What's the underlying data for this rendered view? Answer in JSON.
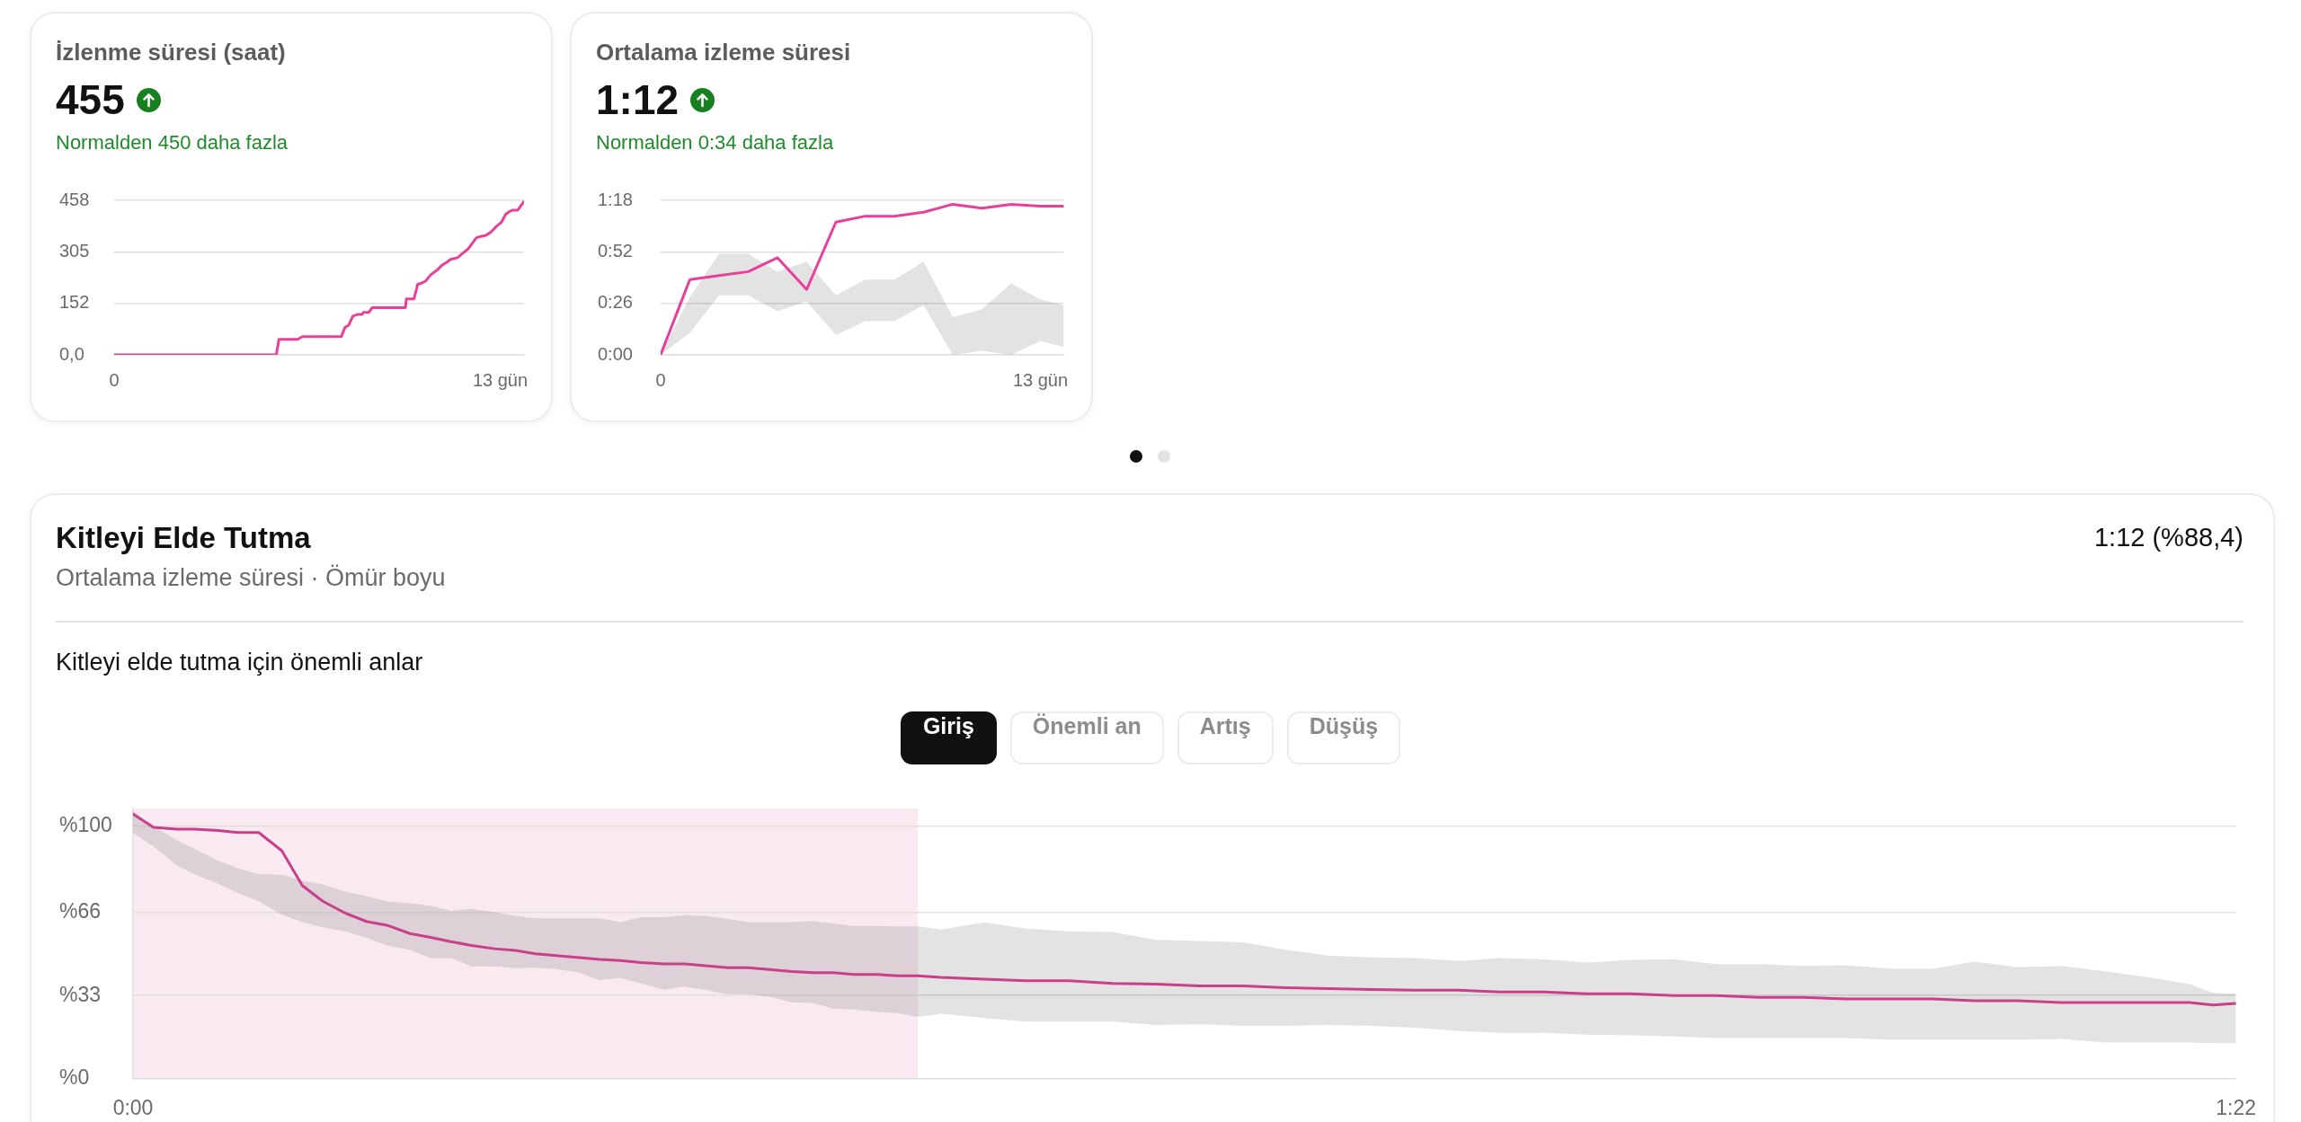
{
  "chart_data": [
    {
      "type": "line",
      "title": "İzlenme süresi (saat)",
      "annotations": [
        "455",
        "Normalden 450 daha fazla"
      ],
      "x": [
        0,
        5.46,
        5.55,
        6.18,
        6.34,
        7.65,
        7.77,
        7.9,
        8.04,
        8.21,
        8.34,
        8.4,
        8.58,
        8.69,
        9.81,
        9.84,
        10.1,
        10.22,
        10.37,
        10.49,
        10.67,
        10.9,
        11.02,
        11.21,
        11.33,
        11.56,
        11.74,
        11.92,
        12.2,
        12.34,
        12.52,
        12.7,
        12.88,
        13.05,
        13.18,
        13.3,
        13.42,
        13.59,
        13.68,
        13.8
      ],
      "series": [
        {
          "color": "#e8409a",
          "values": [
            0,
            0,
            46,
            46,
            54,
            54,
            81,
            88,
            115,
            120,
            120,
            126,
            126,
            140,
            140,
            166,
            166,
            209,
            213,
            219,
            238,
            253,
            264,
            275,
            283,
            288,
            301,
            314,
            347,
            351,
            354,
            365,
            381,
            394,
            416,
            424,
            429,
            429,
            440,
            454
          ]
        }
      ],
      "xlim": [
        0,
        13.8
      ],
      "xticks": [
        0,
        {
          "value": 13,
          "label": "13 gün"
        }
      ],
      "ylim": [
        0,
        458
      ],
      "yticks": [
        {
          "value": 0,
          "label": "0,0"
        },
        152,
        305,
        458
      ],
      "grid": "y"
    },
    {
      "type": "line",
      "title": "Ortalama izleme süresi",
      "annotations": [
        "1:12",
        "Normalden 0:34 daha fazla"
      ],
      "x": [
        0,
        1,
        2,
        3,
        4,
        5,
        6,
        7,
        8,
        9,
        10,
        11,
        12,
        13,
        13.8
      ],
      "series": [
        {
          "color": "#e8409a",
          "values": [
            0,
            38,
            40,
            42,
            49,
            33,
            67,
            70,
            70,
            72,
            76,
            74,
            76,
            75,
            75
          ],
          "lower": [
            0,
            11,
            30,
            30,
            22,
            27,
            10,
            17,
            17,
            25,
            0,
            2,
            0,
            7,
            4
          ],
          "upper": [
            0,
            29,
            51,
            51,
            42,
            47,
            30,
            38,
            38,
            47,
            19,
            23,
            36,
            28,
            25
          ]
        }
      ],
      "xlim": [
        0,
        13.8
      ],
      "xticks": [
        0,
        {
          "value": 13,
          "label": "13 gün"
        }
      ],
      "ylim": [
        0,
        78
      ],
      "yticks": [
        {
          "value": 0,
          "label": "0:00"
        },
        {
          "value": 26,
          "label": "0:26"
        },
        {
          "value": 52,
          "label": "0:52"
        },
        {
          "value": 78,
          "label": "1:18"
        }
      ],
      "grid": "y"
    },
    {
      "type": "line",
      "title": "Kitleyi Elde Tutma",
      "subtitle": "Ortalama izleme süresi · Ömür boyu",
      "annotations": [
        "1:12 (%88,4)",
        "Kitleyi elde tutma için önemli anlar",
        "Giriş",
        "Önemli an",
        "Artış",
        "Düşüş"
      ],
      "x": [
        0,
        0.8,
        1.7,
        2.4,
        3.3,
        4.1,
        4.9,
        5.8,
        6.6,
        7.4,
        8.3,
        9.1,
        9.9,
        10.8,
        11.6,
        12.4,
        13.2,
        14.1,
        14.9,
        15.7,
        16.5,
        17.4,
        18.2,
        19,
        19.8,
        20.7,
        21.5,
        22.3,
        23.2,
        24,
        24.8,
        25.7,
        26.5,
        27.3,
        28.1,
        29,
        29.8,
        30.6,
        31.5,
        33.2,
        34.8,
        36.5,
        38.2,
        39.9,
        41.6,
        43.3,
        44.9,
        46.6,
        48.3,
        50,
        51.7,
        53.3,
        55,
        56.7,
        58.4,
        60.1,
        61.7,
        63.4,
        65.1,
        66.8,
        68.5,
        70.2,
        71.8,
        73.5,
        75.2,
        76.9,
        78.6,
        80.2,
        81.1,
        82
      ],
      "series": [
        {
          "color": "#c93f8a",
          "values": [
            104.8,
            99.5,
            98.8,
            98.8,
            98.3,
            97.5,
            97.5,
            90.3,
            76.5,
            70.3,
            65.5,
            62.3,
            60.8,
            57.5,
            56,
            54.3,
            52.8,
            51.5,
            50.8,
            49.5,
            48.8,
            48,
            47.3,
            46.8,
            46,
            45.5,
            45.5,
            44.8,
            44,
            44,
            43.3,
            42.5,
            42,
            42,
            41.3,
            41.3,
            40.8,
            40.8,
            40.2,
            39.5,
            38.8,
            38.8,
            37.8,
            37.5,
            36.8,
            36.8,
            36.1,
            35.7,
            35.4,
            35.1,
            35.1,
            34.4,
            34.4,
            33.7,
            33.7,
            33,
            33,
            32.3,
            32.3,
            31.6,
            31.6,
            31.6,
            30.9,
            30.9,
            30.2,
            30.2,
            30.2,
            30.2,
            29.2,
            29.9
          ],
          "upper": [
            106,
            100,
            94.5,
            91,
            86.5,
            83.3,
            81,
            80.8,
            78.5,
            77,
            74,
            72.3,
            70.3,
            69.5,
            68.5,
            66.5,
            67.3,
            66,
            64.5,
            63.5,
            63.5,
            63.5,
            63.5,
            62,
            64,
            64,
            64.8,
            64.5,
            63.3,
            62,
            62,
            62,
            62.5,
            61.5,
            60.5,
            60.5,
            60.3,
            60.3,
            59.1,
            61.9,
            59.5,
            58.4,
            58.1,
            55,
            54.6,
            54,
            51.2,
            48.8,
            48.1,
            47.8,
            46.7,
            47.8,
            47.4,
            46,
            47.1,
            47.4,
            45.4,
            45.4,
            44.7,
            45,
            43.6,
            43.6,
            46.4,
            44.3,
            44.7,
            42.6,
            40.2,
            37.5,
            34,
            33.7
          ],
          "lower": [
            97.3,
            92,
            84.5,
            81,
            77.3,
            73.5,
            70.3,
            65,
            62,
            60,
            58.3,
            55.8,
            52.8,
            51,
            47.8,
            47.8,
            44.5,
            44.5,
            43.8,
            44,
            43.5,
            42,
            39,
            40,
            37.8,
            35.3,
            36.5,
            35.3,
            33.5,
            33.5,
            32.5,
            30.3,
            30,
            27.8,
            27.5,
            26.5,
            26,
            24.5,
            25.8,
            24.1,
            22.7,
            22.7,
            22.7,
            21.3,
            21.6,
            21,
            21,
            21.3,
            21,
            20.3,
            18.9,
            18.2,
            18.2,
            17.5,
            17.2,
            16.8,
            16.2,
            16.2,
            16.2,
            16.2,
            15.5,
            15.5,
            15.5,
            15.5,
            15.8,
            14.4,
            14.4,
            14.4,
            14.1,
            14.1
          ]
        }
      ],
      "bands": [
        {
          "axis": "x",
          "from": 0,
          "to": 30.6,
          "color": "#f9eaf2"
        }
      ],
      "xlim": [
        0,
        82
      ],
      "xticks": [
        {
          "value": 0,
          "label": "0:00"
        },
        {
          "value": 82,
          "label": "1:22"
        }
      ],
      "ylim": [
        0,
        107
      ],
      "yticks": [
        {
          "value": 0,
          "label": "%0"
        },
        {
          "value": 33,
          "label": "%33"
        },
        {
          "value": 66,
          "label": "%66"
        },
        {
          "value": 100,
          "label": "%100"
        }
      ],
      "grid": "y"
    }
  ]
}
